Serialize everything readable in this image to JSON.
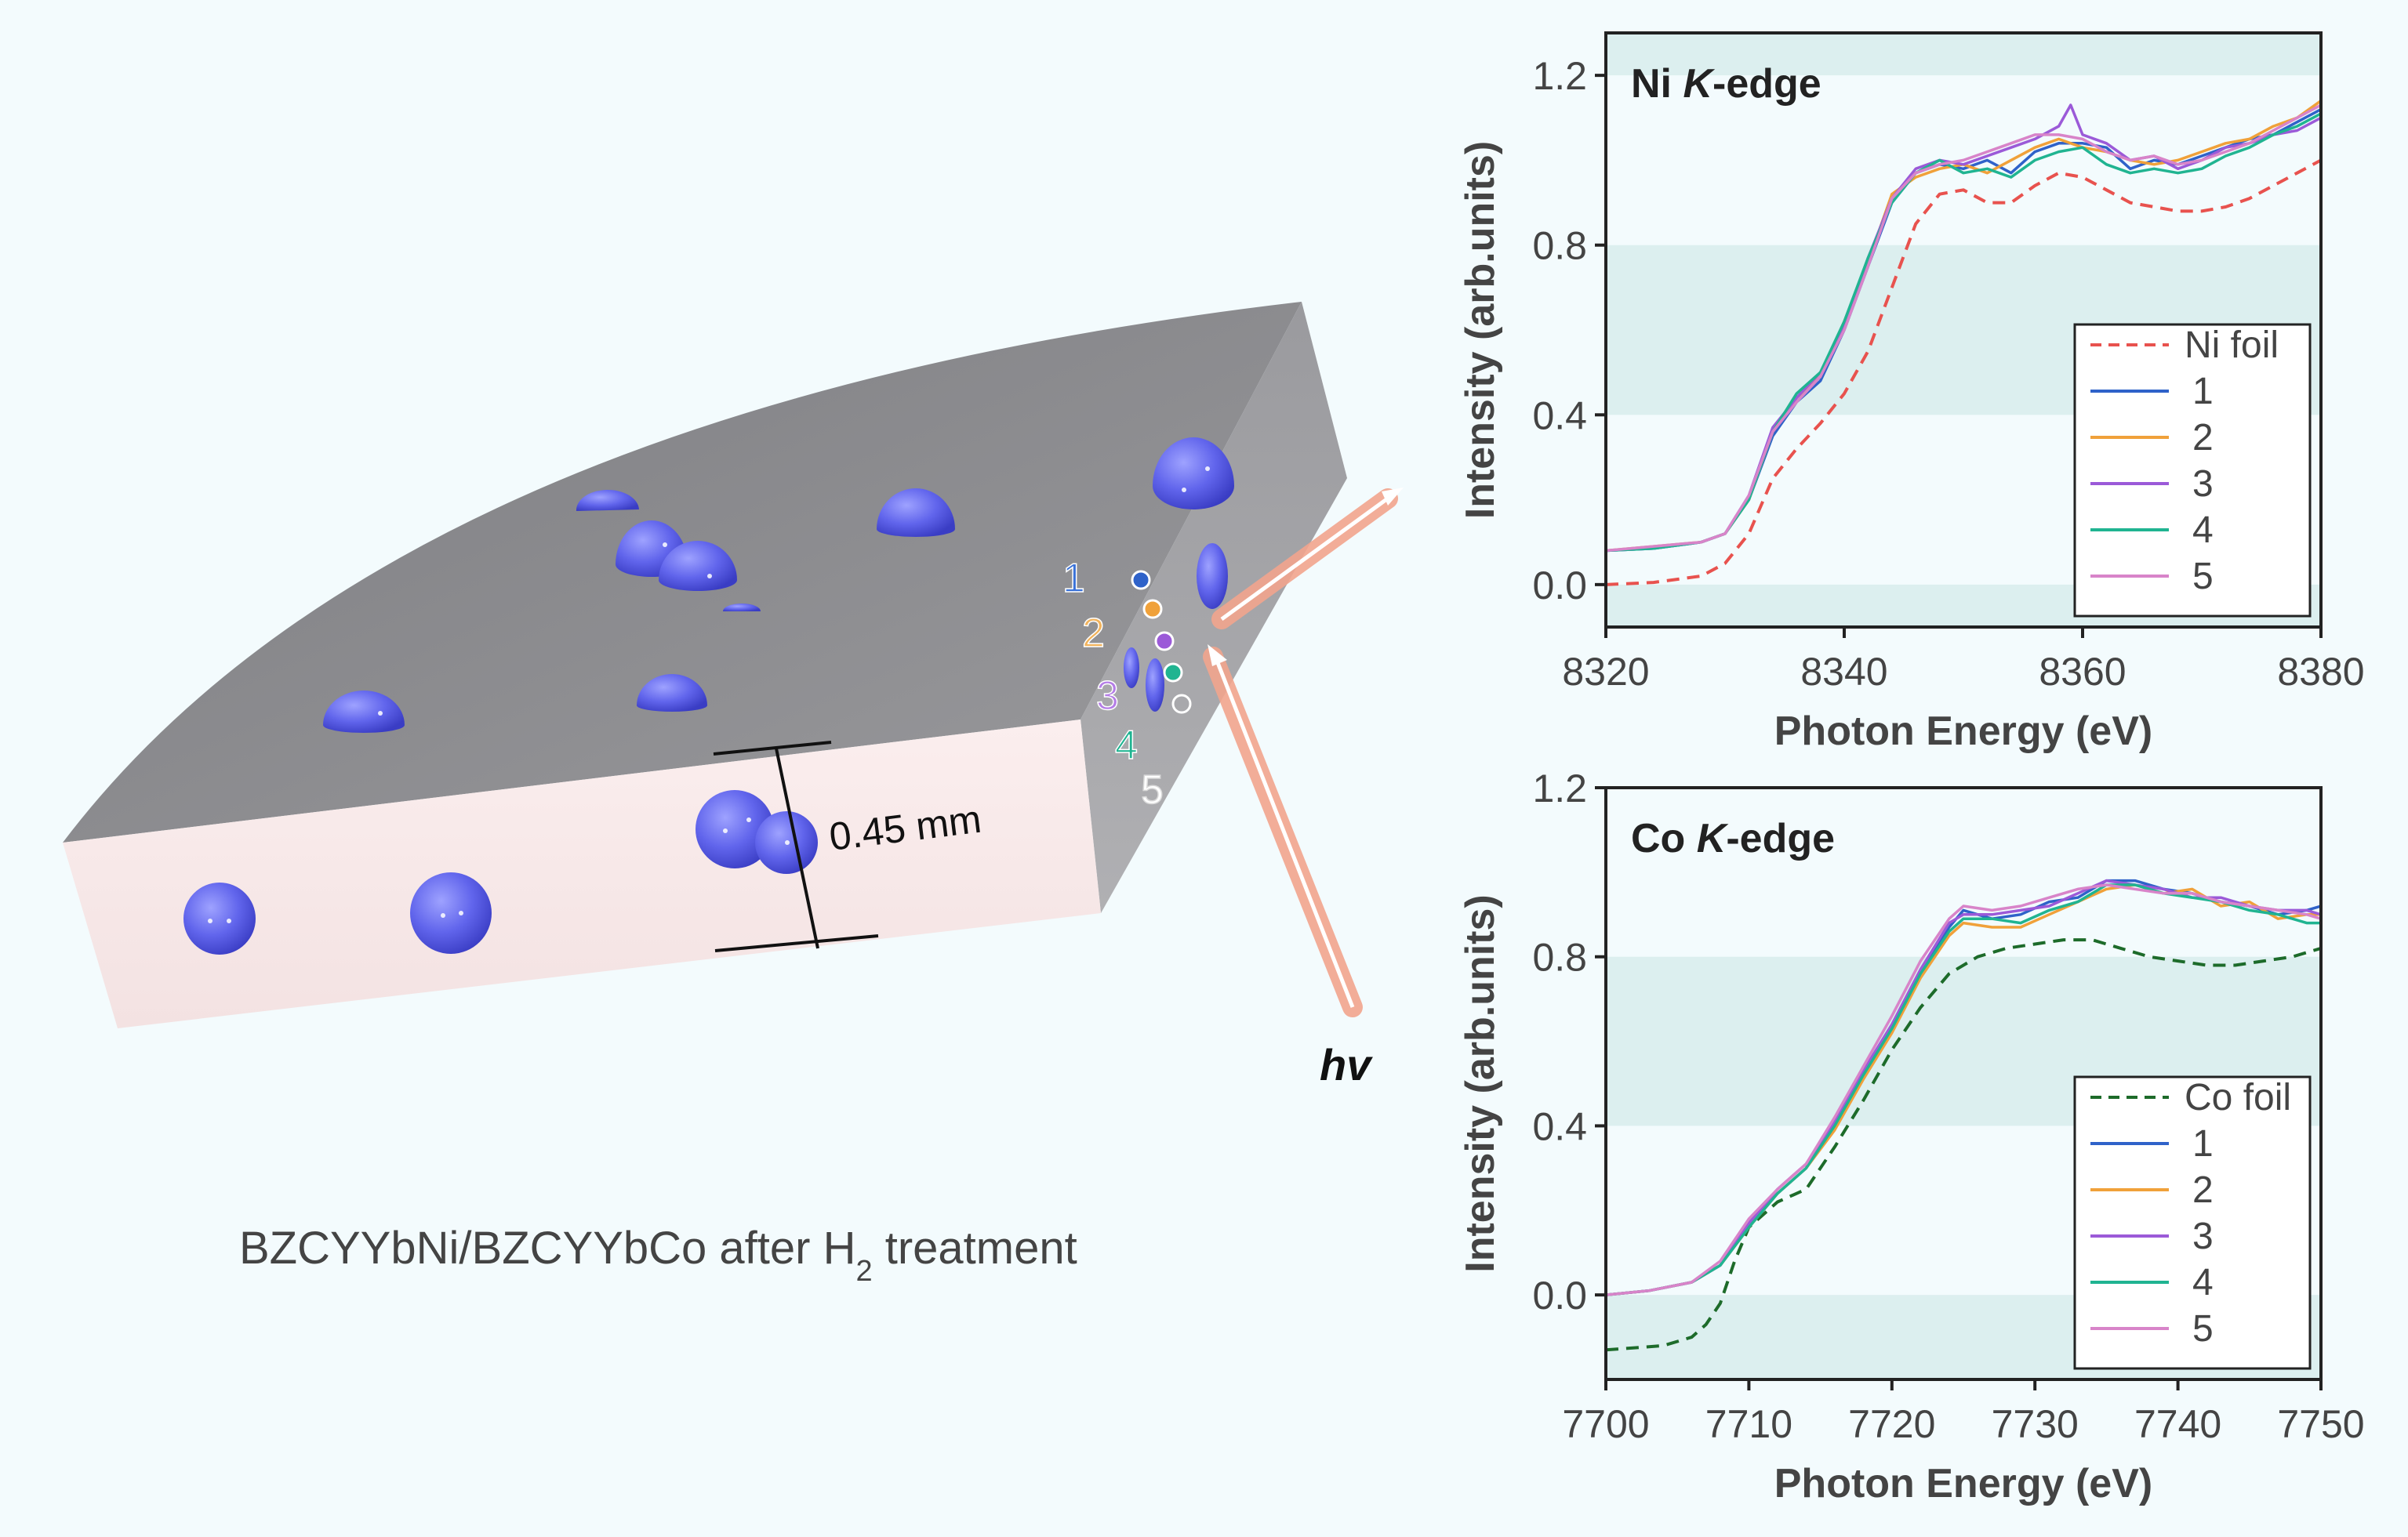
{
  "illustration": {
    "caption_main": "BZCYYbNi/BZCYYbCo after H",
    "caption_sub": "2",
    "caption_end": " treatment",
    "thickness_label": "0.45 mm",
    "beam_label": "hv",
    "spot_labels": [
      "1",
      "2",
      "3",
      "4",
      "5"
    ],
    "spot_colors": [
      "#2f62c9",
      "#f0a13a",
      "#9b5ad8",
      "#20b491",
      "#ffffff"
    ],
    "label_colors": [
      "#3a72d8",
      "#f2b35c",
      "#b47de6",
      "#20b491",
      "#ffffff"
    ]
  },
  "colors": {
    "particle": "#5f63e8",
    "slab_top": "#8a8a8d",
    "slab_front": "#f7e9e9",
    "beam": "#f2a58e",
    "band": "#dcefef"
  },
  "chart_data": [
    {
      "type": "line",
      "annotation": "Ni K-edge",
      "annotation_parts": [
        "Ni ",
        "K",
        "-edge"
      ],
      "xlabel": "Photon Energy (eV)",
      "ylabel": "Intensity (arb.units)",
      "xlim": [
        8320,
        8380
      ],
      "ylim": [
        -0.1,
        1.3
      ],
      "xticks": [
        8320,
        8340,
        8360,
        8380
      ],
      "yticks": [
        0.0,
        0.4,
        0.8,
        1.2
      ],
      "ytick_labels": [
        "0.0",
        "0.4",
        "0.8",
        "1.2"
      ],
      "legend_position": "bottom-right",
      "series": [
        {
          "name": "Ni foil",
          "color": "#e8524e",
          "dash": true,
          "x": [
            8320,
            8324,
            8328,
            8330,
            8332,
            8334,
            8336,
            8338,
            8340,
            8342,
            8344,
            8346,
            8348,
            8350,
            8352,
            8354,
            8356,
            8358,
            8360,
            8362,
            8364,
            8366,
            8368,
            8370,
            8372,
            8374,
            8376,
            8378,
            8380
          ],
          "y": [
            0.0,
            0.005,
            0.02,
            0.05,
            0.12,
            0.25,
            0.32,
            0.38,
            0.45,
            0.55,
            0.7,
            0.85,
            0.92,
            0.93,
            0.9,
            0.9,
            0.94,
            0.97,
            0.96,
            0.93,
            0.9,
            0.89,
            0.88,
            0.88,
            0.89,
            0.91,
            0.94,
            0.97,
            1.0
          ]
        },
        {
          "name": "1",
          "color": "#2f62c9",
          "dash": false,
          "x": [
            8320,
            8324,
            8328,
            8330,
            8332,
            8334,
            8336,
            8338,
            8340,
            8342,
            8344,
            8346,
            8348,
            8350,
            8352,
            8354,
            8356,
            8358,
            8360,
            8362,
            8364,
            8366,
            8368,
            8370,
            8372,
            8374,
            8376,
            8378,
            8380
          ],
          "y": [
            0.08,
            0.085,
            0.1,
            0.12,
            0.2,
            0.35,
            0.43,
            0.48,
            0.6,
            0.75,
            0.9,
            0.97,
            0.99,
            0.98,
            1.0,
            0.97,
            1.02,
            1.04,
            1.04,
            1.03,
            0.98,
            1.0,
            0.99,
            1.01,
            1.03,
            1.05,
            1.06,
            1.09,
            1.12
          ]
        },
        {
          "name": "2",
          "color": "#f0a13a",
          "dash": false,
          "x": [
            8320,
            8324,
            8328,
            8330,
            8332,
            8334,
            8336,
            8338,
            8340,
            8342,
            8344,
            8346,
            8348,
            8350,
            8352,
            8354,
            8356,
            8358,
            8360,
            8362,
            8364,
            8366,
            8368,
            8370,
            8372,
            8374,
            8376,
            8378,
            8380
          ],
          "y": [
            0.08,
            0.09,
            0.1,
            0.12,
            0.2,
            0.36,
            0.44,
            0.49,
            0.62,
            0.76,
            0.92,
            0.96,
            0.98,
            0.99,
            0.97,
            1.0,
            1.03,
            1.05,
            1.03,
            1.02,
            1.0,
            0.99,
            1.0,
            1.02,
            1.04,
            1.05,
            1.08,
            1.1,
            1.14
          ]
        },
        {
          "name": "3",
          "color": "#9b5ad8",
          "dash": false,
          "x": [
            8320,
            8324,
            8328,
            8330,
            8332,
            8334,
            8336,
            8338,
            8340,
            8342,
            8344,
            8346,
            8348,
            8350,
            8352,
            8354,
            8356,
            8358,
            8359,
            8360,
            8362,
            8364,
            8366,
            8368,
            8370,
            8372,
            8374,
            8376,
            8378,
            8380
          ],
          "y": [
            0.08,
            0.085,
            0.1,
            0.12,
            0.21,
            0.37,
            0.44,
            0.5,
            0.61,
            0.77,
            0.91,
            0.98,
            1.0,
            0.99,
            1.01,
            1.03,
            1.05,
            1.08,
            1.13,
            1.06,
            1.04,
            1.0,
            1.01,
            0.98,
            1.0,
            1.03,
            1.04,
            1.06,
            1.07,
            1.1
          ]
        },
        {
          "name": "4",
          "color": "#20b491",
          "dash": false,
          "x": [
            8320,
            8324,
            8328,
            8330,
            8332,
            8334,
            8336,
            8338,
            8340,
            8342,
            8344,
            8346,
            8348,
            8350,
            8352,
            8354,
            8356,
            8358,
            8360,
            8362,
            8364,
            8366,
            8368,
            8370,
            8372,
            8374,
            8376,
            8378,
            8380
          ],
          "y": [
            0.08,
            0.085,
            0.1,
            0.12,
            0.2,
            0.36,
            0.45,
            0.5,
            0.62,
            0.77,
            0.9,
            0.97,
            1.0,
            0.97,
            0.98,
            0.96,
            1.0,
            1.02,
            1.03,
            0.99,
            0.97,
            0.98,
            0.97,
            0.98,
            1.01,
            1.03,
            1.06,
            1.08,
            1.11
          ]
        },
        {
          "name": "5",
          "color": "#d884c9",
          "dash": false,
          "x": [
            8320,
            8324,
            8328,
            8330,
            8332,
            8334,
            8336,
            8338,
            8340,
            8342,
            8344,
            8346,
            8348,
            8350,
            8352,
            8354,
            8356,
            8358,
            8360,
            8362,
            8364,
            8366,
            8368,
            8370,
            8372,
            8374,
            8376,
            8378,
            8380
          ],
          "y": [
            0.08,
            0.09,
            0.1,
            0.12,
            0.21,
            0.36,
            0.43,
            0.49,
            0.6,
            0.75,
            0.91,
            0.97,
            0.99,
            1.0,
            1.02,
            1.04,
            1.06,
            1.06,
            1.05,
            1.02,
            1.0,
            1.01,
            0.99,
            1.0,
            1.02,
            1.04,
            1.07,
            1.1,
            1.13
          ]
        }
      ]
    },
    {
      "type": "line",
      "annotation": "Co K-edge",
      "annotation_parts": [
        "Co ",
        "K",
        "-edge"
      ],
      "xlabel": "Photon Energy (eV)",
      "ylabel": "Intensity (arb.units)",
      "xlim": [
        7700,
        7750
      ],
      "ylim": [
        -0.2,
        1.2
      ],
      "xticks": [
        7700,
        7710,
        7720,
        7730,
        7740,
        7750
      ],
      "yticks": [
        0.0,
        0.4,
        0.8,
        1.2
      ],
      "ytick_labels": [
        "0.0",
        "0.4",
        "0.8",
        "1.2"
      ],
      "legend_position": "bottom-right",
      "series": [
        {
          "name": "Co foil",
          "color": "#1d6b2a",
          "dash": true,
          "x": [
            7700,
            7704,
            7706,
            7707,
            7708,
            7709,
            7710,
            7712,
            7714,
            7716,
            7718,
            7720,
            7722,
            7724,
            7726,
            7728,
            7730,
            7732,
            7734,
            7736,
            7738,
            7740,
            7742,
            7744,
            7746,
            7748,
            7750
          ],
          "y": [
            -0.13,
            -0.12,
            -0.1,
            -0.07,
            -0.02,
            0.08,
            0.16,
            0.22,
            0.25,
            0.35,
            0.46,
            0.58,
            0.68,
            0.76,
            0.8,
            0.82,
            0.83,
            0.84,
            0.84,
            0.82,
            0.8,
            0.79,
            0.78,
            0.78,
            0.79,
            0.8,
            0.82
          ]
        },
        {
          "name": "1",
          "color": "#2f62c9",
          "dash": false,
          "x": [
            7700,
            7703,
            7706,
            7708,
            7710,
            7712,
            7714,
            7716,
            7718,
            7720,
            7722,
            7724,
            7725,
            7727,
            7729,
            7731,
            7733,
            7735,
            7737,
            7739,
            7741,
            7743,
            7745,
            7747,
            7749,
            7750
          ],
          "y": [
            0.0,
            0.01,
            0.03,
            0.07,
            0.17,
            0.24,
            0.3,
            0.4,
            0.52,
            0.63,
            0.76,
            0.87,
            0.91,
            0.89,
            0.9,
            0.93,
            0.94,
            0.98,
            0.98,
            0.96,
            0.95,
            0.93,
            0.92,
            0.9,
            0.91,
            0.92
          ]
        },
        {
          "name": "2",
          "color": "#f0a13a",
          "dash": false,
          "x": [
            7700,
            7703,
            7706,
            7708,
            7710,
            7712,
            7714,
            7716,
            7718,
            7720,
            7722,
            7724,
            7725,
            7727,
            7729,
            7731,
            7733,
            7735,
            7737,
            7739,
            7741,
            7743,
            7745,
            7747,
            7749,
            7750
          ],
          "y": [
            0.0,
            0.01,
            0.03,
            0.07,
            0.16,
            0.24,
            0.3,
            0.39,
            0.51,
            0.62,
            0.75,
            0.85,
            0.88,
            0.87,
            0.87,
            0.9,
            0.93,
            0.96,
            0.97,
            0.95,
            0.96,
            0.92,
            0.93,
            0.89,
            0.9,
            0.9
          ]
        },
        {
          "name": "3",
          "color": "#9b5ad8",
          "dash": false,
          "x": [
            7700,
            7703,
            7706,
            7708,
            7710,
            7712,
            7714,
            7716,
            7718,
            7720,
            7722,
            7724,
            7725,
            7727,
            7729,
            7731,
            7733,
            7735,
            7737,
            7739,
            7741,
            7743,
            7745,
            7747,
            7749,
            7750
          ],
          "y": [
            0.0,
            0.01,
            0.03,
            0.07,
            0.17,
            0.25,
            0.31,
            0.41,
            0.53,
            0.64,
            0.77,
            0.88,
            0.9,
            0.9,
            0.91,
            0.92,
            0.95,
            0.98,
            0.97,
            0.96,
            0.94,
            0.94,
            0.92,
            0.91,
            0.91,
            0.9
          ]
        },
        {
          "name": "4",
          "color": "#20b491",
          "dash": false,
          "x": [
            7700,
            7703,
            7706,
            7708,
            7710,
            7712,
            7714,
            7716,
            7718,
            7720,
            7722,
            7724,
            7725,
            7727,
            7729,
            7731,
            7733,
            7735,
            7737,
            7739,
            7741,
            7743,
            7745,
            7747,
            7749,
            7750
          ],
          "y": [
            0.0,
            0.01,
            0.03,
            0.07,
            0.16,
            0.24,
            0.3,
            0.4,
            0.52,
            0.63,
            0.76,
            0.86,
            0.89,
            0.89,
            0.88,
            0.91,
            0.93,
            0.97,
            0.97,
            0.95,
            0.94,
            0.93,
            0.91,
            0.9,
            0.88,
            0.88
          ]
        },
        {
          "name": "5",
          "color": "#d884c9",
          "dash": false,
          "x": [
            7700,
            7703,
            7706,
            7708,
            7710,
            7712,
            7714,
            7716,
            7718,
            7720,
            7722,
            7724,
            7725,
            7727,
            7729,
            7731,
            7733,
            7735,
            7737,
            7739,
            7741,
            7743,
            7745,
            7747,
            7749,
            7750
          ],
          "y": [
            0.0,
            0.01,
            0.03,
            0.08,
            0.18,
            0.25,
            0.31,
            0.42,
            0.54,
            0.66,
            0.79,
            0.89,
            0.92,
            0.91,
            0.92,
            0.94,
            0.96,
            0.97,
            0.96,
            0.95,
            0.95,
            0.93,
            0.92,
            0.91,
            0.9,
            0.89
          ]
        }
      ]
    }
  ]
}
